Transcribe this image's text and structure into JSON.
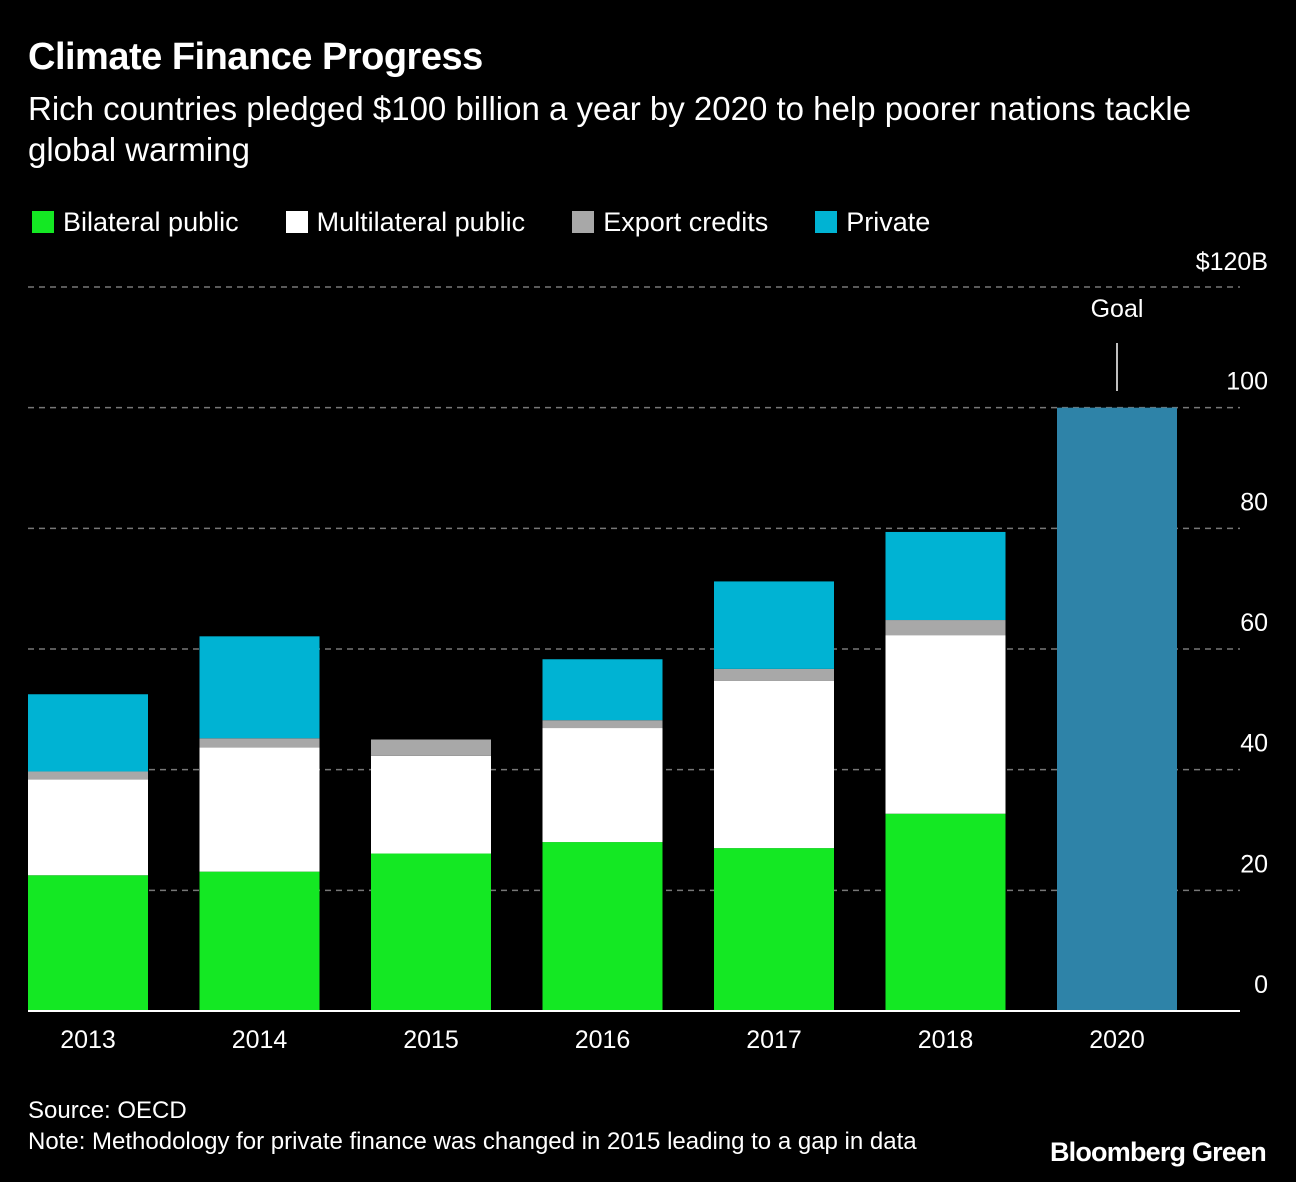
{
  "header": {
    "title": "Climate Finance Progress",
    "subtitle": "Rich countries pledged $100 billion a year by 2020 to help poorer nations tackle global warming"
  },
  "colors": {
    "background": "#000000",
    "bilateral": "#14e823",
    "multilateral": "#ffffff",
    "export": "#a8a8a8",
    "private": "#00b3d3",
    "goal": "#2e83a8",
    "grid": "#777777"
  },
  "chart_data": {
    "type": "bar",
    "stacked": true,
    "title": "Climate Finance Progress",
    "xlabel": "",
    "ylabel": "",
    "ylim": [
      0,
      120
    ],
    "y_ticks": [
      {
        "value": 0,
        "label": "0"
      },
      {
        "value": 20,
        "label": "20"
      },
      {
        "value": 40,
        "label": "40"
      },
      {
        "value": 60,
        "label": "60"
      },
      {
        "value": 80,
        "label": "80"
      },
      {
        "value": 100,
        "label": "100"
      },
      {
        "value": 120,
        "label": "$120B"
      }
    ],
    "grid": true,
    "legend_position": "top-left",
    "categories": [
      "2013",
      "2014",
      "2015",
      "2016",
      "2017",
      "2018",
      "2020"
    ],
    "series": [
      {
        "name": "Bilateral public",
        "color_key": "bilateral",
        "values": [
          22.5,
          23.1,
          26.1,
          28.0,
          27.0,
          32.7,
          null
        ]
      },
      {
        "name": "Multilateral public",
        "color_key": "multilateral",
        "values": [
          15.9,
          20.6,
          16.2,
          18.9,
          27.7,
          29.6,
          null
        ]
      },
      {
        "name": "Export credits",
        "color_key": "export",
        "values": [
          1.3,
          1.5,
          2.7,
          1.3,
          2.0,
          2.5,
          null
        ]
      },
      {
        "name": "Private",
        "color_key": "private",
        "values": [
          12.8,
          16.9,
          null,
          10.1,
          14.5,
          14.6,
          null
        ]
      },
      {
        "name": "Goal",
        "color_key": "goal",
        "values": [
          null,
          null,
          null,
          null,
          null,
          null,
          100
        ]
      }
    ],
    "annotations": [
      {
        "text": "Goal",
        "category": "2020"
      }
    ]
  },
  "legend": [
    {
      "label": "Bilateral public",
      "color_key": "bilateral"
    },
    {
      "label": "Multilateral public",
      "color_key": "multilateral"
    },
    {
      "label": "Export credits",
      "color_key": "export"
    },
    {
      "label": "Private",
      "color_key": "private"
    }
  ],
  "footer": {
    "source": "Source: OECD",
    "note": "Note: Methodology for private finance was changed in 2015 leading to a gap in data",
    "logo": "Bloomberg Green"
  }
}
